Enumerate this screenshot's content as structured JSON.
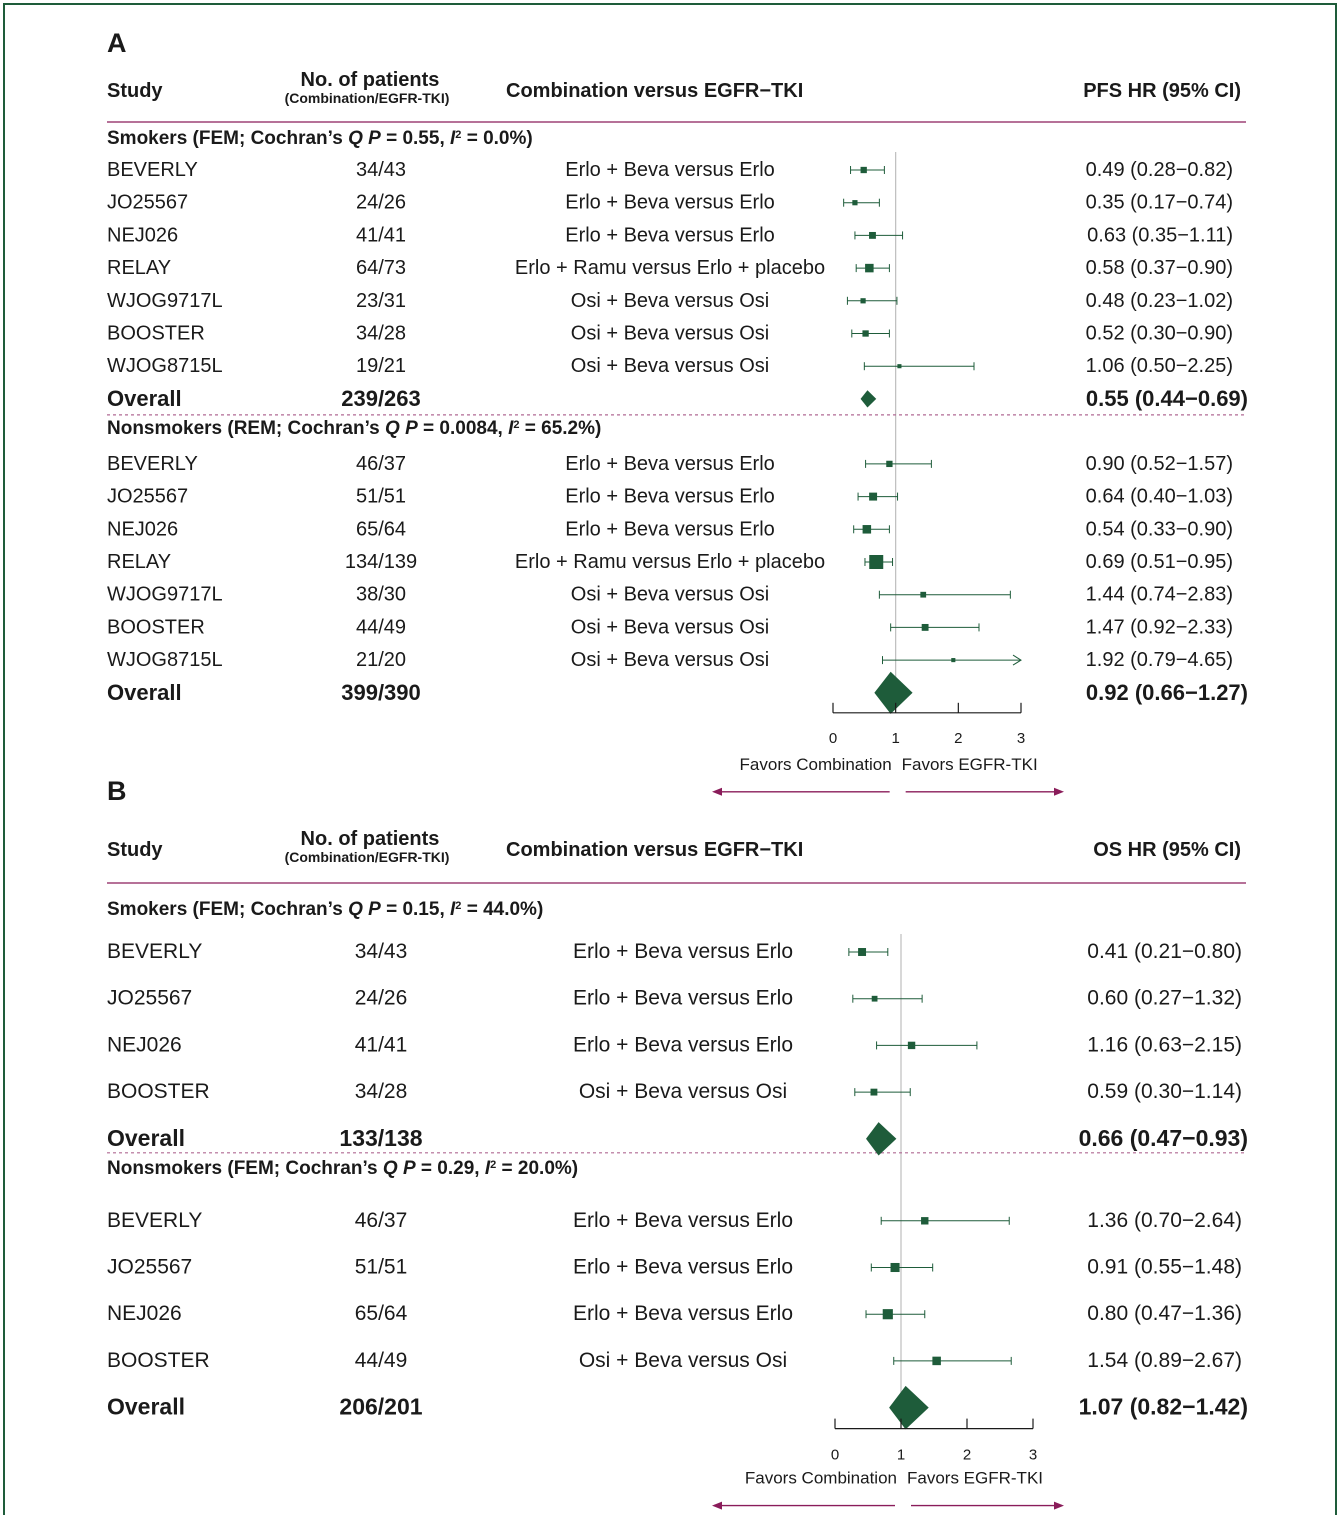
{
  "colors": {
    "marker": "#1e5c3a",
    "rule": "#8a1c5a",
    "dashed": "#b06a94",
    "frame": "#1e5c3a",
    "refline": "#bdbdbd"
  },
  "chart_data": [
    {
      "type": "forest",
      "panel_label": "A",
      "headers": {
        "study": "Study",
        "patients": "No. of patients",
        "patients_sub": "(Combination/EGFR-TKI)",
        "comparison": "Combination versus EGFR−TKI",
        "hr": "PFS HR (95% CI)"
      },
      "axis": {
        "min": 0,
        "max": 3,
        "ticks": [
          "0",
          "1",
          "2",
          "3"
        ],
        "ref": 1,
        "left_label": "Favors Combination",
        "right_label": "Favors EGFR-TKI"
      },
      "subgroups": [
        {
          "title_parts": [
            "Smokers (FEM; Cochran’s ",
            "Q P",
            " = 0.55, ",
            "I",
            "2",
            " = 0.0%)"
          ],
          "studies": [
            {
              "study": "BEVERLY",
              "patients": "34/43",
              "comparison": "Erlo + Beva versus Erlo",
              "hr": 0.49,
              "lo": 0.28,
              "hi": 0.82,
              "label": "0.49 (0.28−0.82)",
              "weight": 0.3
            },
            {
              "study": "JO25567",
              "patients": "24/26",
              "comparison": "Erlo + Beva versus Erlo",
              "hr": 0.35,
              "lo": 0.17,
              "hi": 0.74,
              "label": "0.35 (0.17−0.74)",
              "weight": 0.2
            },
            {
              "study": "NEJ026",
              "patients": "41/41",
              "comparison": "Erlo + Beva versus Erlo",
              "hr": 0.63,
              "lo": 0.35,
              "hi": 1.11,
              "label": "0.63 (0.35−1.11)",
              "weight": 0.35
            },
            {
              "study": "RELAY",
              "patients": "64/73",
              "comparison": "Erlo + Ramu versus Erlo + placebo",
              "hr": 0.58,
              "lo": 0.37,
              "hi": 0.9,
              "label": "0.58 (0.37−0.90)",
              "weight": 0.5
            },
            {
              "study": "WJOG9717L",
              "patients": "23/31",
              "comparison": "Osi + Beva versus Osi",
              "hr": 0.48,
              "lo": 0.23,
              "hi": 1.02,
              "label": "0.48 (0.23−1.02)",
              "weight": 0.2
            },
            {
              "study": "BOOSTER",
              "patients": "34/28",
              "comparison": "Osi + Beva versus Osi",
              "hr": 0.52,
              "lo": 0.3,
              "hi": 0.9,
              "label": "0.52 (0.30−0.90)",
              "weight": 0.3
            },
            {
              "study": "WJOG8715L",
              "patients": "19/21",
              "comparison": "Osi + Beva versus Osi",
              "hr": 1.06,
              "lo": 0.5,
              "hi": 2.25,
              "label": "1.06 (0.50−2.25)",
              "weight": 0.1
            }
          ],
          "overall": {
            "study": "Overall",
            "patients": "239/263",
            "hr": 0.55,
            "lo": 0.44,
            "hi": 0.69,
            "label": "0.55 (0.44−0.69)"
          }
        },
        {
          "title_parts": [
            "Nonsmokers (REM; Cochran’s ",
            "Q P",
            " = 0.0084, ",
            "I",
            "2",
            " = 65.2%)"
          ],
          "studies": [
            {
              "study": "BEVERLY",
              "patients": "46/37",
              "comparison": "Erlo + Beva versus Erlo",
              "hr": 0.9,
              "lo": 0.52,
              "hi": 1.57,
              "label": "0.90 (0.52−1.57)",
              "weight": 0.3
            },
            {
              "study": "JO25567",
              "patients": "51/51",
              "comparison": "Erlo + Beva versus Erlo",
              "hr": 0.64,
              "lo": 0.4,
              "hi": 1.03,
              "label": "0.64 (0.40−1.03)",
              "weight": 0.45
            },
            {
              "study": "NEJ026",
              "patients": "65/64",
              "comparison": "Erlo + Beva versus Erlo",
              "hr": 0.54,
              "lo": 0.33,
              "hi": 0.9,
              "label": "0.54 (0.33−0.90)",
              "weight": 0.5
            },
            {
              "study": "RELAY",
              "patients": "134/139",
              "comparison": "Erlo + Ramu versus Erlo + placebo",
              "hr": 0.69,
              "lo": 0.51,
              "hi": 0.95,
              "label": "0.69 (0.51−0.95)",
              "weight": 1.0
            },
            {
              "study": "WJOG9717L",
              "patients": "38/30",
              "comparison": "Osi + Beva versus Osi",
              "hr": 1.44,
              "lo": 0.74,
              "hi": 2.83,
              "label": "1.44 (0.74−2.83)",
              "weight": 0.25
            },
            {
              "study": "BOOSTER",
              "patients": "44/49",
              "comparison": "Osi + Beva versus Osi",
              "hr": 1.47,
              "lo": 0.92,
              "hi": 2.33,
              "label": "1.47 (0.92−2.33)",
              "weight": 0.35
            },
            {
              "study": "WJOG8715L",
              "patients": "21/20",
              "comparison": "Osi + Beva versus Osi",
              "hr": 1.92,
              "lo": 0.79,
              "hi": 4.65,
              "label": "1.92 (0.79−4.65)",
              "weight": 0.1
            }
          ],
          "overall": {
            "study": "Overall",
            "patients": "399/390",
            "hr": 0.92,
            "lo": 0.66,
            "hi": 1.27,
            "label": "0.92 (0.66−1.27)"
          }
        }
      ]
    },
    {
      "type": "forest",
      "panel_label": "B",
      "headers": {
        "study": "Study",
        "patients": "No. of patients",
        "patients_sub": "(Combination/EGFR-TKI)",
        "comparison": "Combination versus EGFR−TKI",
        "hr": "OS HR (95% CI)"
      },
      "axis": {
        "min": 0,
        "max": 3,
        "ticks": [
          "0",
          "1",
          "2",
          "3"
        ],
        "ref": 1,
        "left_label": "Favors Combination",
        "right_label": "Favors EGFR-TKI"
      },
      "subgroups": [
        {
          "title_parts": [
            "Smokers (FEM; Cochran’s ",
            "Q P",
            " = 0.15, ",
            "I",
            "2",
            " = 44.0%)"
          ],
          "studies": [
            {
              "study": "BEVERLY",
              "patients": "34/43",
              "comparison": "Erlo + Beva versus Erlo",
              "hr": 0.41,
              "lo": 0.21,
              "hi": 0.8,
              "label": "0.41 (0.21−0.80)",
              "weight": 0.45
            },
            {
              "study": "JO25567",
              "patients": "24/26",
              "comparison": "Erlo + Beva versus Erlo",
              "hr": 0.6,
              "lo": 0.27,
              "hi": 1.32,
              "label": "0.60 (0.27−1.32)",
              "weight": 0.25
            },
            {
              "study": "NEJ026",
              "patients": "41/41",
              "comparison": "Erlo + Beva versus Erlo",
              "hr": 1.16,
              "lo": 0.63,
              "hi": 2.15,
              "label": "1.16 (0.63−2.15)",
              "weight": 0.4
            },
            {
              "study": "BOOSTER",
              "patients": "34/28",
              "comparison": "Osi + Beva versus Osi",
              "hr": 0.59,
              "lo": 0.3,
              "hi": 1.14,
              "label": "0.59 (0.30−1.14)",
              "weight": 0.35
            }
          ],
          "overall": {
            "study": "Overall",
            "patients": "133/138",
            "hr": 0.66,
            "lo": 0.47,
            "hi": 0.93,
            "label": "0.66 (0.47−0.93)"
          }
        },
        {
          "title_parts": [
            "Nonsmokers (FEM; Cochran’s ",
            "Q P",
            " = 0.29, ",
            "I",
            "2",
            " = 20.0%)"
          ],
          "studies": [
            {
              "study": "BEVERLY",
              "patients": "46/37",
              "comparison": "Erlo + Beva versus Erlo",
              "hr": 1.36,
              "lo": 0.7,
              "hi": 2.64,
              "label": "1.36 (0.70−2.64)",
              "weight": 0.4
            },
            {
              "study": "JO25567",
              "patients": "51/51",
              "comparison": "Erlo + Beva versus Erlo",
              "hr": 0.91,
              "lo": 0.55,
              "hi": 1.48,
              "label": "0.91 (0.55−1.48)",
              "weight": 0.55
            },
            {
              "study": "NEJ026",
              "patients": "65/64",
              "comparison": "Erlo + Beva versus Erlo",
              "hr": 0.8,
              "lo": 0.47,
              "hi": 1.36,
              "label": "0.80 (0.47−1.36)",
              "weight": 0.65
            },
            {
              "study": "BOOSTER",
              "patients": "44/49",
              "comparison": "Osi + Beva versus Osi",
              "hr": 1.54,
              "lo": 0.89,
              "hi": 2.67,
              "label": "1.54 (0.89−2.67)",
              "weight": 0.5
            }
          ],
          "overall": {
            "study": "Overall",
            "patients": "206/201",
            "hr": 1.07,
            "lo": 0.82,
            "hi": 1.42,
            "label": "1.07 (0.82−1.42)"
          }
        }
      ]
    }
  ]
}
